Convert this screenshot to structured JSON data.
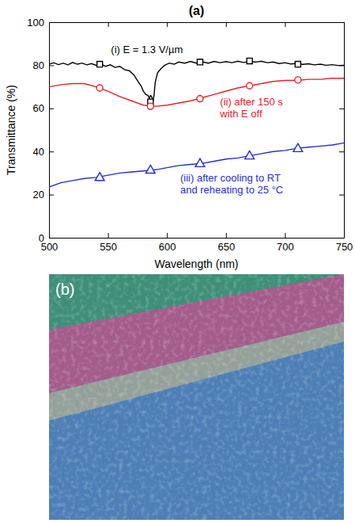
{
  "chart_data": {
    "type": "line",
    "title": "(a)",
    "x_label": "Wavelength (nm)",
    "y_label": "Transmittance (%)",
    "xlim": [
      500,
      750
    ],
    "xticks": [
      500,
      550,
      600,
      650,
      700,
      750
    ],
    "ylim": [
      0,
      100
    ],
    "yticks": [
      0,
      20,
      40,
      60,
      80,
      100
    ],
    "grid": false,
    "series": [
      {
        "label": [
          "(i) E = 1.3 V/µm"
        ],
        "color": "#000000",
        "marker": "square",
        "line_style": "solid",
        "x": [
          500,
          504,
          508,
          512,
          516,
          520,
          524,
          528,
          532,
          536,
          540,
          544,
          548,
          552,
          556,
          560,
          564,
          568,
          572,
          576,
          578,
          580,
          582,
          584,
          585,
          586,
          587,
          588,
          589,
          590,
          592,
          595,
          598,
          602,
          606,
          610,
          615,
          620,
          625,
          630,
          635,
          640,
          645,
          650,
          655,
          660,
          665,
          670,
          675,
          680,
          685,
          690,
          695,
          700,
          705,
          710,
          715,
          720,
          725,
          730,
          735,
          740,
          745,
          750
        ],
        "values": [
          80.5,
          81.2,
          80.3,
          81.0,
          80.2,
          81.3,
          80.5,
          81.0,
          80.2,
          80.8,
          80.0,
          80.6,
          79.5,
          80.2,
          79.0,
          79.5,
          78.0,
          77.5,
          75.5,
          72.0,
          70.5,
          68.0,
          66.5,
          66.0,
          64.5,
          66.0,
          65.5,
          63.0,
          66.0,
          72.0,
          76.5,
          78.5,
          80.0,
          81.0,
          80.5,
          81.5,
          81.0,
          81.8,
          81.0,
          81.6,
          81.0,
          81.8,
          81.2,
          81.7,
          81.2,
          81.9,
          81.3,
          81.8,
          81.5,
          81.9,
          81.2,
          81.5,
          80.8,
          81.2,
          80.6,
          80.9,
          80.4,
          80.7,
          80.2,
          80.5,
          80.0,
          80.3,
          79.9,
          80.0
        ],
        "marker_x": [
          543,
          586,
          628,
          670,
          711
        ],
        "marker_values": [
          80.5,
          63.0,
          81.5,
          82.0,
          80.5
        ]
      },
      {
        "label": [
          "(ii) after 150 s",
          "with E off"
        ],
        "color": "#e8202a",
        "marker": "circle",
        "line_style": "solid",
        "x": [
          500,
          510,
          520,
          530,
          540,
          550,
          560,
          570,
          580,
          590,
          600,
          610,
          620,
          630,
          640,
          650,
          660,
          670,
          680,
          690,
          700,
          710,
          720,
          730,
          740,
          750
        ],
        "values": [
          70.0,
          71.0,
          71.5,
          71.5,
          70.0,
          68.0,
          65.5,
          63.5,
          61.5,
          61.0,
          61.5,
          62.5,
          63.5,
          65.0,
          66.5,
          68.0,
          69.5,
          70.5,
          71.5,
          72.5,
          73.0,
          73.0,
          73.5,
          73.5,
          74.0,
          74.0
        ],
        "marker_x": [
          543,
          586,
          628,
          670,
          711
        ],
        "marker_values": [
          69.5,
          61.0,
          64.5,
          70.5,
          73.2
        ]
      },
      {
        "label": [
          "(iii) after cooling to RT",
          "and reheating to 25 °C"
        ],
        "color": "#1f2fd0",
        "marker": "triangle",
        "line_style": "solid",
        "x": [
          500,
          510,
          520,
          530,
          540,
          550,
          560,
          570,
          580,
          590,
          600,
          610,
          620,
          630,
          640,
          650,
          660,
          670,
          680,
          690,
          700,
          710,
          720,
          730,
          740,
          750
        ],
        "values": [
          23.5,
          25.5,
          26.5,
          27.5,
          28.0,
          29.0,
          30.0,
          30.5,
          31.0,
          31.5,
          32.5,
          33.5,
          34.0,
          34.5,
          35.5,
          36.5,
          37.0,
          38.0,
          39.0,
          40.0,
          40.5,
          41.5,
          42.0,
          42.5,
          43.0,
          44.0
        ],
        "marker_x": [
          543,
          586,
          628,
          670,
          711
        ],
        "marker_values": [
          27.8,
          31.2,
          34.2,
          37.8,
          41.2
        ]
      }
    ]
  },
  "image": {
    "label": "(b)"
  }
}
